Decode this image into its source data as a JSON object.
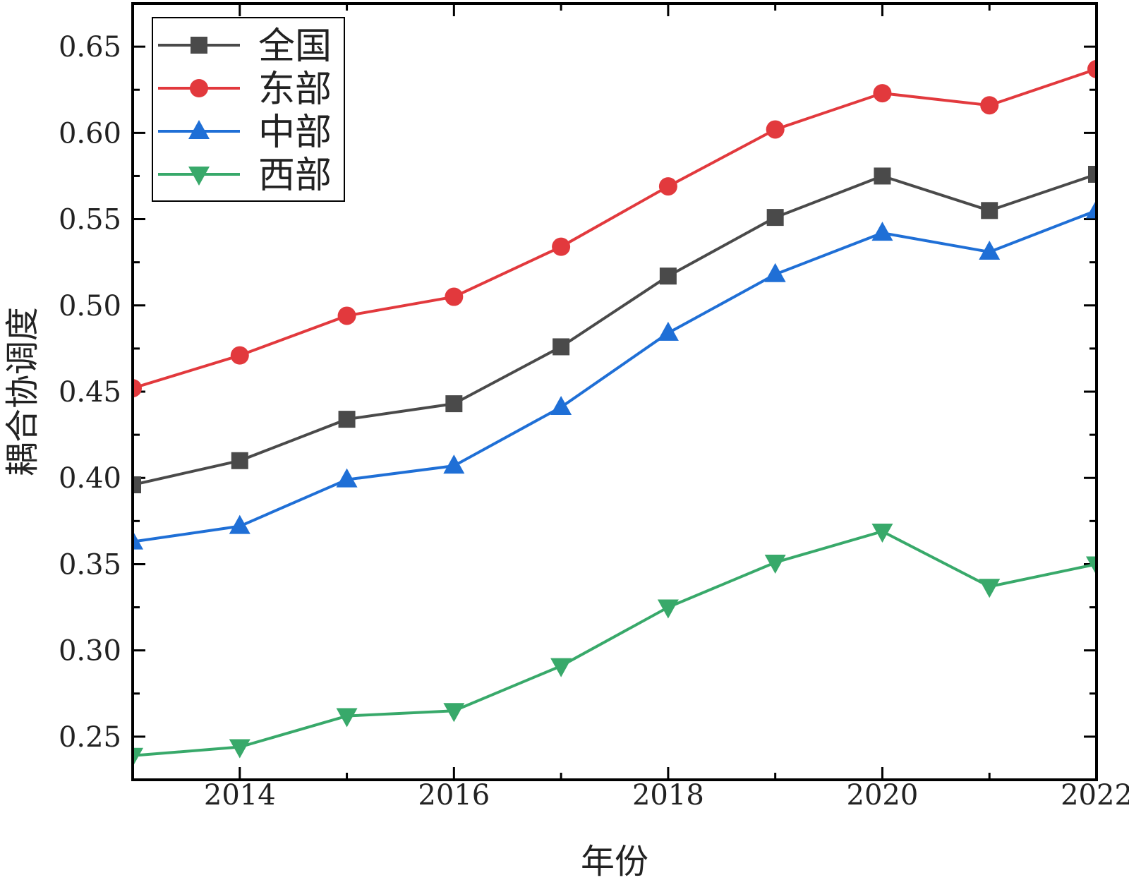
{
  "chart_data": {
    "type": "line",
    "title": "",
    "xlabel": "年份",
    "ylabel": "耦合协调度",
    "xlim": [
      2013,
      2022
    ],
    "ylim": [
      0.225,
      0.675
    ],
    "x": [
      2013,
      2014,
      2015,
      2016,
      2017,
      2018,
      2019,
      2020,
      2021,
      2022
    ],
    "x_ticks": [
      2014,
      2016,
      2018,
      2020,
      2022
    ],
    "x_tick_labels": [
      "2014",
      "2016",
      "2018",
      "2020",
      "2022"
    ],
    "y_ticks": [
      0.25,
      0.3,
      0.35,
      0.4,
      0.45,
      0.5,
      0.55,
      0.6,
      0.65
    ],
    "y_tick_labels": [
      "0.25",
      "0.30",
      "0.35",
      "0.40",
      "0.45",
      "0.50",
      "0.55",
      "0.60",
      "0.65"
    ],
    "grid": false,
    "legend_position": "top-left",
    "series": [
      {
        "name": "全国",
        "color": "#4a4a4a",
        "marker": "square",
        "values": [
          0.396,
          0.41,
          0.434,
          0.443,
          0.476,
          0.517,
          0.551,
          0.575,
          0.555,
          0.576
        ]
      },
      {
        "name": "东部",
        "color": "#e2393d",
        "marker": "circle",
        "values": [
          0.452,
          0.471,
          0.494,
          0.505,
          0.534,
          0.569,
          0.602,
          0.623,
          0.616,
          0.637
        ]
      },
      {
        "name": "中部",
        "color": "#1f6fd6",
        "marker": "triangle-up",
        "values": [
          0.363,
          0.372,
          0.399,
          0.407,
          0.441,
          0.484,
          0.518,
          0.542,
          0.531,
          0.555
        ]
      },
      {
        "name": "西部",
        "color": "#38a96a",
        "marker": "triangle-down",
        "values": [
          0.239,
          0.244,
          0.262,
          0.265,
          0.291,
          0.325,
          0.351,
          0.369,
          0.337,
          0.35
        ]
      }
    ]
  }
}
